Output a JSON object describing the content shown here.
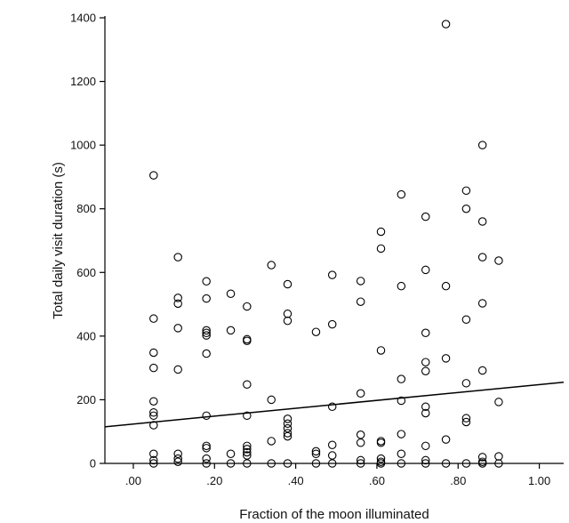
{
  "chart_data": {
    "type": "scatter",
    "title": "",
    "xlabel": "Fraction of the moon illuminated",
    "ylabel": "Total daily visit duration (s)",
    "xlim": [
      -0.07,
      1.06
    ],
    "ylim": [
      0,
      1400
    ],
    "x_ticks": [
      0,
      0.2,
      0.4,
      0.6,
      0.8,
      1.0
    ],
    "x_tick_labels": [
      ".00",
      ".20",
      ".40",
      ".60",
      ".80",
      "1.00"
    ],
    "y_ticks": [
      0,
      200,
      400,
      600,
      800,
      1000,
      1200,
      1400
    ],
    "y_tick_labels": [
      "0",
      "200",
      "400",
      "600",
      "800",
      "1000",
      "1200",
      "1400"
    ],
    "grid": false,
    "marker": "open-circle",
    "color": "#000000",
    "trend_line": {
      "x": [
        -0.07,
        1.06
      ],
      "y": [
        115,
        255
      ]
    },
    "points": [
      {
        "x": 0.05,
        "y": 905
      },
      {
        "x": 0.05,
        "y": 455
      },
      {
        "x": 0.05,
        "y": 348
      },
      {
        "x": 0.05,
        "y": 300
      },
      {
        "x": 0.05,
        "y": 195
      },
      {
        "x": 0.05,
        "y": 160
      },
      {
        "x": 0.05,
        "y": 150
      },
      {
        "x": 0.05,
        "y": 120
      },
      {
        "x": 0.05,
        "y": 30
      },
      {
        "x": 0.05,
        "y": 10
      },
      {
        "x": 0.05,
        "y": 0
      },
      {
        "x": 0.11,
        "y": 648
      },
      {
        "x": 0.11,
        "y": 520
      },
      {
        "x": 0.11,
        "y": 502
      },
      {
        "x": 0.11,
        "y": 425
      },
      {
        "x": 0.11,
        "y": 295
      },
      {
        "x": 0.11,
        "y": 30
      },
      {
        "x": 0.11,
        "y": 15
      },
      {
        "x": 0.11,
        "y": 5
      },
      {
        "x": 0.18,
        "y": 572
      },
      {
        "x": 0.18,
        "y": 518
      },
      {
        "x": 0.18,
        "y": 418
      },
      {
        "x": 0.18,
        "y": 410
      },
      {
        "x": 0.18,
        "y": 402
      },
      {
        "x": 0.18,
        "y": 345
      },
      {
        "x": 0.18,
        "y": 150
      },
      {
        "x": 0.18,
        "y": 55
      },
      {
        "x": 0.18,
        "y": 48
      },
      {
        "x": 0.18,
        "y": 15
      },
      {
        "x": 0.18,
        "y": 0
      },
      {
        "x": 0.24,
        "y": 533
      },
      {
        "x": 0.24,
        "y": 418
      },
      {
        "x": 0.24,
        "y": 30
      },
      {
        "x": 0.24,
        "y": 0
      },
      {
        "x": 0.28,
        "y": 493
      },
      {
        "x": 0.28,
        "y": 390
      },
      {
        "x": 0.28,
        "y": 385
      },
      {
        "x": 0.28,
        "y": 248
      },
      {
        "x": 0.28,
        "y": 150
      },
      {
        "x": 0.28,
        "y": 55
      },
      {
        "x": 0.28,
        "y": 45
      },
      {
        "x": 0.28,
        "y": 35
      },
      {
        "x": 0.28,
        "y": 25
      },
      {
        "x": 0.28,
        "y": 0
      },
      {
        "x": 0.34,
        "y": 623
      },
      {
        "x": 0.34,
        "y": 200
      },
      {
        "x": 0.34,
        "y": 70
      },
      {
        "x": 0.34,
        "y": 0
      },
      {
        "x": 0.38,
        "y": 563
      },
      {
        "x": 0.38,
        "y": 470
      },
      {
        "x": 0.38,
        "y": 448
      },
      {
        "x": 0.38,
        "y": 140
      },
      {
        "x": 0.38,
        "y": 125
      },
      {
        "x": 0.38,
        "y": 110
      },
      {
        "x": 0.38,
        "y": 95
      },
      {
        "x": 0.38,
        "y": 85
      },
      {
        "x": 0.38,
        "y": 0
      },
      {
        "x": 0.45,
        "y": 413
      },
      {
        "x": 0.45,
        "y": 38
      },
      {
        "x": 0.45,
        "y": 30
      },
      {
        "x": 0.45,
        "y": 0
      },
      {
        "x": 0.49,
        "y": 592
      },
      {
        "x": 0.49,
        "y": 437
      },
      {
        "x": 0.49,
        "y": 178
      },
      {
        "x": 0.49,
        "y": 58
      },
      {
        "x": 0.49,
        "y": 25
      },
      {
        "x": 0.49,
        "y": 0
      },
      {
        "x": 0.56,
        "y": 573
      },
      {
        "x": 0.56,
        "y": 508
      },
      {
        "x": 0.56,
        "y": 220
      },
      {
        "x": 0.56,
        "y": 90
      },
      {
        "x": 0.56,
        "y": 65
      },
      {
        "x": 0.56,
        "y": 10
      },
      {
        "x": 0.56,
        "y": 0
      },
      {
        "x": 0.61,
        "y": 728
      },
      {
        "x": 0.61,
        "y": 675
      },
      {
        "x": 0.61,
        "y": 355
      },
      {
        "x": 0.61,
        "y": 70
      },
      {
        "x": 0.61,
        "y": 65
      },
      {
        "x": 0.61,
        "y": 15
      },
      {
        "x": 0.61,
        "y": 5
      },
      {
        "x": 0.61,
        "y": 0
      },
      {
        "x": 0.66,
        "y": 845
      },
      {
        "x": 0.66,
        "y": 557
      },
      {
        "x": 0.66,
        "y": 265
      },
      {
        "x": 0.66,
        "y": 197
      },
      {
        "x": 0.66,
        "y": 92
      },
      {
        "x": 0.66,
        "y": 30
      },
      {
        "x": 0.66,
        "y": 0
      },
      {
        "x": 0.72,
        "y": 775
      },
      {
        "x": 0.72,
        "y": 608
      },
      {
        "x": 0.72,
        "y": 410
      },
      {
        "x": 0.72,
        "y": 318
      },
      {
        "x": 0.72,
        "y": 290
      },
      {
        "x": 0.72,
        "y": 178
      },
      {
        "x": 0.72,
        "y": 158
      },
      {
        "x": 0.72,
        "y": 55
      },
      {
        "x": 0.72,
        "y": 10
      },
      {
        "x": 0.72,
        "y": 0
      },
      {
        "x": 0.77,
        "y": 1380
      },
      {
        "x": 0.77,
        "y": 557
      },
      {
        "x": 0.77,
        "y": 330
      },
      {
        "x": 0.77,
        "y": 75
      },
      {
        "x": 0.77,
        "y": 0
      },
      {
        "x": 0.82,
        "y": 857
      },
      {
        "x": 0.82,
        "y": 800
      },
      {
        "x": 0.82,
        "y": 452
      },
      {
        "x": 0.82,
        "y": 252
      },
      {
        "x": 0.82,
        "y": 142
      },
      {
        "x": 0.82,
        "y": 130
      },
      {
        "x": 0.82,
        "y": 0
      },
      {
        "x": 0.86,
        "y": 1000
      },
      {
        "x": 0.86,
        "y": 760
      },
      {
        "x": 0.86,
        "y": 648
      },
      {
        "x": 0.86,
        "y": 503
      },
      {
        "x": 0.86,
        "y": 292
      },
      {
        "x": 0.86,
        "y": 20
      },
      {
        "x": 0.86,
        "y": 5
      },
      {
        "x": 0.86,
        "y": 0
      },
      {
        "x": 0.9,
        "y": 637
      },
      {
        "x": 0.9,
        "y": 193
      },
      {
        "x": 0.9,
        "y": 22
      },
      {
        "x": 0.9,
        "y": 0
      }
    ]
  }
}
